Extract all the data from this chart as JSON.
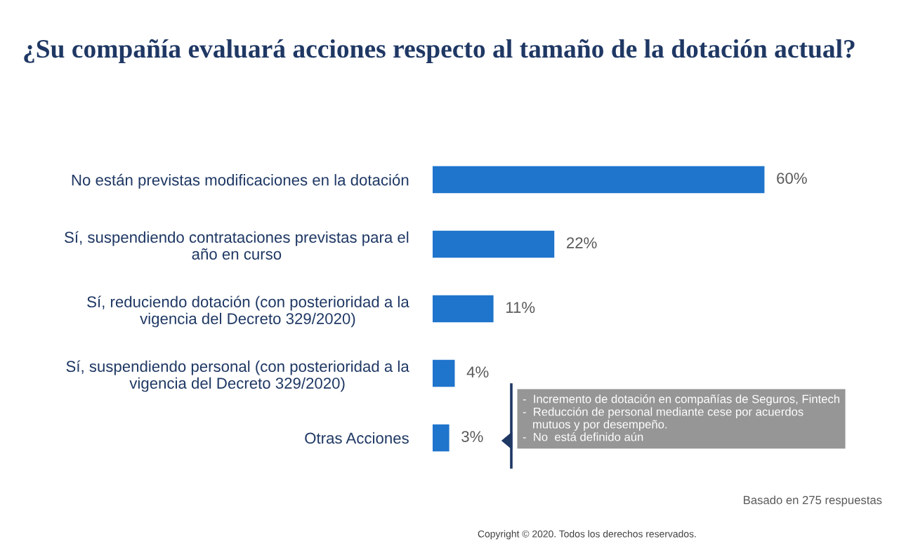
{
  "chart_data": {
    "type": "bar",
    "orientation": "horizontal",
    "title": "¿Su compañía evaluará acciones respecto al tamaño de la dotación actual?",
    "categories": [
      "No están previstas modificaciones en la dotación",
      "Sí, suspendiendo contrataciones previstas para el\naño en curso",
      "Sí, reduciendo dotación (con posterioridad a la\nvigencia del Decreto 329/2020)",
      "Sí, suspendiendo personal (con posterioridad a la\nvigencia del Decreto 329/2020)",
      "Otras Acciones"
    ],
    "values": [
      60,
      22,
      11,
      4,
      3
    ],
    "value_labels": [
      "60%",
      "22%",
      "11%",
      "4%",
      "3%"
    ],
    "color": "#1f74cc",
    "annotations": [
      "-  Incremento de dotación en compañías de Seguros, Fintech\n-  Reducción de personal mediante cese por acuerdos\n   mutuos y por desempeño.\n-  No  está definido aún",
      "Basado en 275 respuestas",
      "Copyright © 2020. Todos los derechos reservados."
    ]
  }
}
